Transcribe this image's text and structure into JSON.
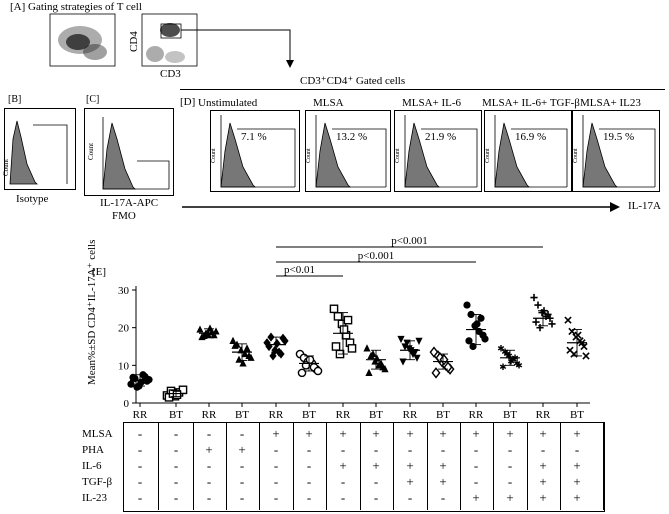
{
  "panelA": {
    "tag": "[A]",
    "title": "Gating strategies of T cell",
    "y_label": "CD4",
    "x_label": "CD3",
    "gated_label": "CD3⁺CD4⁺ Gated cells"
  },
  "panelB": {
    "tag": "[B]",
    "x_label": "Isotype",
    "y_label": "Count"
  },
  "panelC": {
    "tag": "[C]",
    "x_label_1": "IL-17A-APC",
    "x_label_2": "FMO",
    "y_label": "Count"
  },
  "panelD": {
    "tag": "[D]",
    "axis_label": "IL-17A",
    "y_label": "Count",
    "conditions": [
      {
        "name": "Unstimulated",
        "percent": "7.1 %"
      },
      {
        "name": "MLSA",
        "percent": "13.2 %"
      },
      {
        "name": "MLSA+ IL-6",
        "percent": "21.9 %"
      },
      {
        "name": "MLSA+ IL-6+ TGF-β",
        "percent": "16.9 %"
      },
      {
        "name": "MLSA+ IL23",
        "percent": "19.5 %"
      }
    ]
  },
  "panelE": {
    "tag": "[E]",
    "significance": [
      "p<0.001",
      "p<0.001",
      "p<0.01"
    ],
    "table": {
      "rows": [
        {
          "name": "MLSA",
          "marks": [
            "-",
            "-",
            "-",
            "-",
            "+",
            "+",
            "+",
            "+",
            "+",
            "+",
            "+",
            "+",
            "+",
            "+"
          ]
        },
        {
          "name": "PHA",
          "marks": [
            "-",
            "-",
            "+",
            "+",
            "-",
            "-",
            "-",
            "-",
            "-",
            "-",
            "-",
            "-",
            "-",
            "-"
          ]
        },
        {
          "name": "IL-6",
          "marks": [
            "-",
            "-",
            "-",
            "-",
            "-",
            "-",
            "+",
            "+",
            "+",
            "+",
            "-",
            "-",
            "+",
            "+"
          ]
        },
        {
          "name": "TGF-β",
          "marks": [
            "-",
            "-",
            "-",
            "-",
            "-",
            "-",
            "-",
            "-",
            "+",
            "+",
            "-",
            "-",
            "+",
            "+"
          ]
        },
        {
          "name": "IL-23",
          "marks": [
            "-",
            "-",
            "-",
            "-",
            "-",
            "-",
            "-",
            "-",
            "-",
            "-",
            "+",
            "+",
            "+",
            "+"
          ]
        }
      ]
    }
  },
  "chart_data": {
    "type": "scatter",
    "ylabel": "Mean%±SD CD4⁺IL-17A⁺ cells",
    "ylim": [
      0,
      30
    ],
    "yticks": [
      0,
      10,
      20,
      30
    ],
    "categories": [
      "RR",
      "BT",
      "RR",
      "BT",
      "RR",
      "BT",
      "RR",
      "BT",
      "RR",
      "BT",
      "RR",
      "BT",
      "RR",
      "BT"
    ],
    "series": [
      {
        "name": "Unstim RR",
        "mean": 6.0,
        "sd": 1.5,
        "values": [
          5.0,
          6.5,
          4.5,
          7.5,
          5.8,
          6.8,
          4.2,
          5.5,
          7.0,
          6.2
        ]
      },
      {
        "name": "Unstim BT",
        "mean": 2.5,
        "sd": 0.8,
        "values": [
          2.0,
          3.2,
          1.8,
          2.8,
          3.5,
          1.5,
          2.5,
          2.2
        ]
      },
      {
        "name": "PHA RR",
        "mean": 18.5,
        "sd": 1.2,
        "values": [
          19.5,
          17.8,
          18.2,
          18.8,
          19.0,
          17.5,
          18.5,
          19.8,
          18.0
        ]
      },
      {
        "name": "PHA BT",
        "mean": 13.5,
        "sd": 2.2,
        "values": [
          16.5,
          15.5,
          14.0,
          13.0,
          12.5,
          15.2,
          11.5,
          10.5,
          14.5,
          12.0
        ]
      },
      {
        "name": "MLSA RR",
        "mean": 15.5,
        "sd": 2.0,
        "values": [
          16.0,
          17.5,
          14.0,
          13.5,
          17.2,
          15.0,
          12.5,
          15.8,
          13.0,
          16.5
        ]
      },
      {
        "name": "MLSA BT",
        "mean": 10.5,
        "sd": 2.0,
        "values": [
          13.0,
          12.0,
          11.0,
          10.5,
          9.0,
          8.0,
          10.0,
          11.5,
          9.5,
          8.5
        ]
      },
      {
        "name": "MLSA+IL-6 RR",
        "mean": 18.5,
        "sd": 5.5,
        "values": [
          25.0,
          23.0,
          21.0,
          18.0,
          16.0,
          15.0,
          13.0,
          19.5,
          22.0,
          14.5
        ]
      },
      {
        "name": "MLSA+IL-6 BT",
        "mean": 11.5,
        "sd": 2.5,
        "values": [
          14.5,
          12.5,
          11.0,
          10.0,
          9.5,
          8.0,
          13.0,
          11.8,
          10.5,
          9.0
        ]
      },
      {
        "name": "MLSA+IL-6+TGF-β RR",
        "mean": 14.0,
        "sd": 2.5,
        "values": [
          17.0,
          15.0,
          14.5,
          13.0,
          12.0,
          11.0,
          16.0,
          14.0,
          13.5,
          16.5
        ]
      },
      {
        "name": "MLSA+IL-6+TGF-β BT",
        "mean": 11.0,
        "sd": 2.0,
        "values": [
          13.5,
          12.5,
          11.0,
          10.0,
          9.0,
          8.0,
          12.0,
          11.5,
          9.5
        ]
      },
      {
        "name": "MLSA+IL-23 RR",
        "mean": 19.5,
        "sd": 4.0,
        "values": [
          26.0,
          23.5,
          20.5,
          19.0,
          18.0,
          16.5,
          15.0,
          21.0,
          22.5,
          17.0
        ]
      },
      {
        "name": "MLSA+IL-23 BT",
        "mean": 12.0,
        "sd": 2.0,
        "values": [
          14.5,
          13.5,
          12.5,
          11.5,
          10.5,
          9.5,
          13.0,
          11.0,
          12.0,
          10.0
        ]
      },
      {
        "name": "MLSA+IL-6+TGF-β+IL-23 RR",
        "mean": 22.5,
        "sd": 2.0,
        "values": [
          28.0,
          26.0,
          24.0,
          23.0,
          22.5,
          21.5,
          20.0,
          24.5,
          23.5,
          21.0
        ]
      },
      {
        "name": "MLSA+IL-6+TGF-β+IL-23 BT",
        "mean": 16.0,
        "sd": 3.5,
        "values": [
          22.0,
          19.0,
          17.5,
          16.5,
          15.0,
          14.0,
          13.0,
          18.0,
          16.0,
          12.5
        ]
      }
    ],
    "markers": [
      "circle-filled",
      "square-open",
      "triangle-filled",
      "triangle-filled",
      "diamond-filled",
      "circle-open",
      "square-open",
      "triangle-filled",
      "triangle-down-filled",
      "diamond-open",
      "hexagon-filled",
      "star-filled",
      "plus",
      "cross"
    ]
  }
}
